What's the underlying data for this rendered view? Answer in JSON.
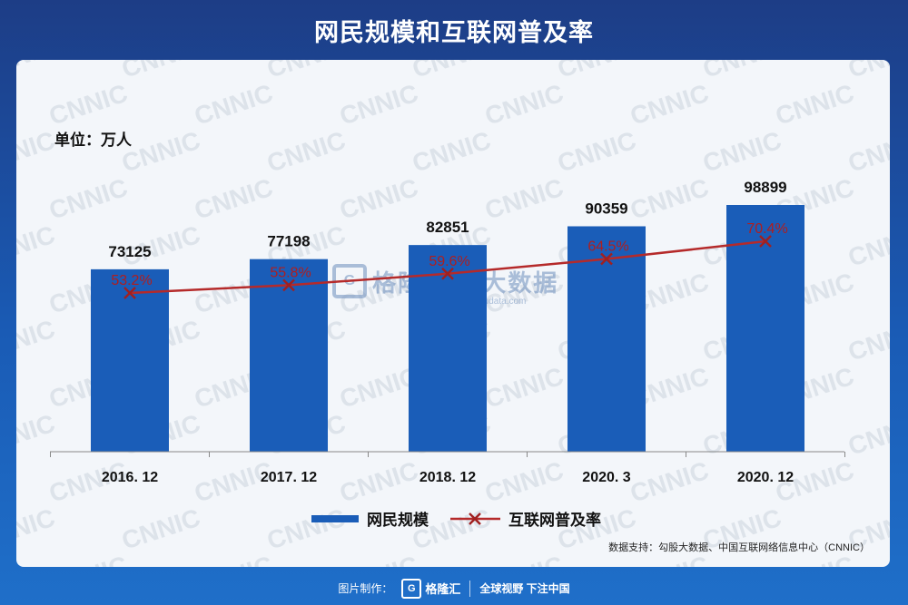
{
  "title": "网民规模和互联网普及率",
  "unit_label": "单位：万人",
  "source": "数据支持：勾股大数据、中国互联网络信息中心（CNNIC）",
  "watermark_text": "CNNIC",
  "center_watermark": {
    "text": "格隆汇   股大数据",
    "sub": "gogudata.com"
  },
  "footer": {
    "made_by": "图片制作：",
    "logo_text": "格隆汇",
    "slogan": "全球视野 下注中国"
  },
  "colors": {
    "bar": "#1a5db8",
    "line": "#b52a2a",
    "marker": "#a02020",
    "pct_label": "#b01e1e",
    "bg_top": "#1d3d86",
    "card": "#f3f6fa"
  },
  "chart_data": {
    "type": "bar",
    "categories": [
      "2016. 12",
      "2017. 12",
      "2018. 12",
      "2020. 3",
      "2020. 12"
    ],
    "series": [
      {
        "name": "网民规模",
        "type": "bar",
        "values": [
          73125,
          77198,
          82851,
          90359,
          98899
        ]
      },
      {
        "name": "互联网普及率",
        "type": "line",
        "values": [
          53.2,
          55.8,
          59.6,
          64.5,
          70.4
        ],
        "labels": [
          "53.2%",
          "55.8%",
          "59.6%",
          "64.5%",
          "70.4%"
        ]
      }
    ],
    "legend": [
      "网民规模",
      "互联网普及率"
    ],
    "legend_position": "bottom",
    "grid": false
  }
}
